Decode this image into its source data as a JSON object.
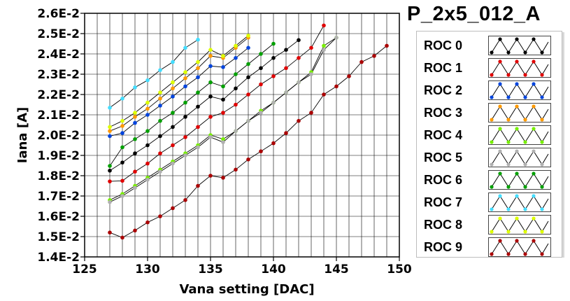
{
  "panel_title": "P_2x5_012_A",
  "chart_data": {
    "type": "line",
    "title": "P_2x5_012_A",
    "xlabel": "Vana setting [DAC]",
    "ylabel": "Iana [A]",
    "xlim": [
      125,
      150
    ],
    "ylim": [
      0.014,
      0.026
    ],
    "xticks": [
      "125",
      "130",
      "135",
      "140",
      "145",
      "150"
    ],
    "yticks": [
      "1.4E-2",
      "1.5E-2",
      "1.6E-2",
      "1.7E-2",
      "1.8E-2",
      "1.9E-2",
      "2.0E-2",
      "2.1E-2",
      "2.2E-2",
      "2.3E-2",
      "2.4E-2",
      "2.5E-2",
      "2.6E-2"
    ],
    "grid": true,
    "legend_position": "right",
    "series": [
      {
        "name": "ROC 0",
        "color": "#000000",
        "x": [
          127,
          128,
          129,
          130,
          131,
          132,
          133,
          134,
          135,
          136,
          137,
          138,
          139,
          140,
          141,
          142
        ],
        "y": [
          0.01825,
          0.01865,
          0.0191,
          0.0195,
          0.01995,
          0.0204,
          0.0209,
          0.0214,
          0.0219,
          0.02175,
          0.0223,
          0.02285,
          0.0233,
          0.0238,
          0.0242,
          0.02468
        ]
      },
      {
        "name": "ROC 1",
        "color": "#e00000",
        "x": [
          127,
          128,
          129,
          130,
          131,
          132,
          133,
          134,
          135,
          136,
          137,
          138,
          139,
          140,
          141,
          142,
          143,
          144
        ],
        "y": [
          0.01772,
          0.01775,
          0.0182,
          0.0186,
          0.0191,
          0.0195,
          0.0199,
          0.0204,
          0.0209,
          0.0211,
          0.0215,
          0.022,
          0.0225,
          0.0229,
          0.0233,
          0.0238,
          0.0243,
          0.0254
        ]
      },
      {
        "name": "ROC 2",
        "color": "#0044dd",
        "x": [
          127,
          128,
          129,
          130,
          131,
          132,
          133,
          134,
          135,
          136,
          137,
          138
        ],
        "y": [
          0.01995,
          0.0201,
          0.0206,
          0.021,
          0.02145,
          0.0219,
          0.0224,
          0.02285,
          0.0234,
          0.02335,
          0.0238,
          0.0243
        ]
      },
      {
        "name": "ROC 3",
        "color": "#ff9900",
        "x": [
          127,
          128,
          129,
          130,
          131,
          132,
          133,
          134,
          135,
          136,
          137,
          138
        ],
        "y": [
          0.0202,
          0.02045,
          0.0209,
          0.0213,
          0.0218,
          0.0223,
          0.0228,
          0.0233,
          0.0239,
          0.0238,
          0.0243,
          0.0248
        ]
      },
      {
        "name": "ROC 4",
        "color": "#77ee00",
        "x": [
          127,
          128,
          129,
          130,
          131,
          132,
          133,
          134,
          135,
          136,
          137,
          138,
          139,
          140,
          141,
          142,
          143,
          144,
          145
        ],
        "y": [
          0.0168,
          0.0171,
          0.0175,
          0.0179,
          0.0183,
          0.0187,
          0.0191,
          0.0195,
          0.02,
          0.0198,
          0.0202,
          0.0207,
          0.0212,
          0.0216,
          0.0221,
          0.0226,
          0.0231,
          0.0244,
          0.0248
        ]
      },
      {
        "name": "ROC 5",
        "color": "#b0b0b0",
        "x": [
          127,
          128,
          129,
          130,
          131,
          132,
          133,
          134,
          135,
          136,
          137,
          138,
          139,
          140,
          141,
          142,
          143,
          144,
          145
        ],
        "y": [
          0.0167,
          0.017,
          0.0174,
          0.0178,
          0.0182,
          0.0186,
          0.019,
          0.0194,
          0.0199,
          0.01965,
          0.0202,
          0.0207,
          0.0211,
          0.0216,
          0.0221,
          0.0226,
          0.023,
          0.0242,
          0.0248
        ]
      },
      {
        "name": "ROC 6",
        "color": "#00a000",
        "x": [
          127,
          128,
          129,
          130,
          131,
          132,
          133,
          134,
          135,
          136,
          137,
          138,
          139,
          140
        ],
        "y": [
          0.01848,
          0.0194,
          0.0198,
          0.0202,
          0.0207,
          0.0211,
          0.0216,
          0.0221,
          0.0226,
          0.0224,
          0.023,
          0.0235,
          0.024,
          0.0245
        ]
      },
      {
        "name": "ROC 7",
        "color": "#44ddff",
        "x": [
          127,
          128,
          129,
          130,
          131,
          132,
          133,
          134
        ],
        "y": [
          0.02135,
          0.0218,
          0.02235,
          0.0227,
          0.0232,
          0.0236,
          0.0243,
          0.0247
        ]
      },
      {
        "name": "ROC 8",
        "color": "#ddff00",
        "x": [
          127,
          128,
          129,
          130,
          131,
          132,
          133,
          134,
          135,
          136,
          137,
          138
        ],
        "y": [
          0.0204,
          0.0207,
          0.0211,
          0.0216,
          0.0221,
          0.0226,
          0.0231,
          0.0236,
          0.0242,
          0.0239,
          0.0244,
          0.0249
        ]
      },
      {
        "name": "ROC 9",
        "color": "#aa0000",
        "x": [
          127,
          128,
          129,
          130,
          131,
          132,
          133,
          134,
          135,
          136,
          137,
          138,
          139,
          140,
          141,
          142,
          143,
          144,
          145,
          146,
          147,
          148,
          149
        ],
        "y": [
          0.0152,
          0.01495,
          0.0153,
          0.0157,
          0.016,
          0.0164,
          0.0168,
          0.0175,
          0.018,
          0.0179,
          0.0183,
          0.0188,
          0.0192,
          0.0196,
          0.0201,
          0.0207,
          0.0211,
          0.022,
          0.0224,
          0.0229,
          0.0236,
          0.0239,
          0.0244
        ]
      }
    ]
  }
}
